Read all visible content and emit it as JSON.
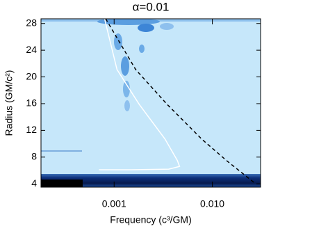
{
  "chart_data": {
    "type": "line",
    "title": "α=0.01",
    "x_label": "Frequency (c³/GM)",
    "y_label": "Radius (GM/c²)",
    "xscale": "log",
    "xlim": [
      0.00018,
      0.031
    ],
    "xticks": [
      0.001,
      {
        "value": 0.01,
        "label": "0.010"
      }
    ],
    "ylim": [
      3.5,
      28.7
    ],
    "yticks": [
      4,
      8,
      12,
      16,
      20,
      24,
      28
    ],
    "background_color": "#c6e7fa",
    "series": [
      {
        "color": "#ffffff",
        "style": "solid",
        "x": [
          0.0008,
          0.00107,
          0.0018,
          0.0033,
          0.0044,
          0.00464,
          0.0036,
          0.0015,
          0.0007
        ],
        "values": [
          28.7,
          21.1,
          15.9,
          10.7,
          7.5,
          6.6,
          6.2,
          6.1,
          6.1
        ]
      },
      {
        "color": "#000000",
        "style": "dashed",
        "x": [
          0.00082,
          0.00166,
          0.00346,
          0.0078,
          0.0139,
          0.0266
        ],
        "values": [
          28.7,
          21.1,
          15.9,
          10.7,
          7.5,
          4.2
        ]
      }
    ]
  }
}
